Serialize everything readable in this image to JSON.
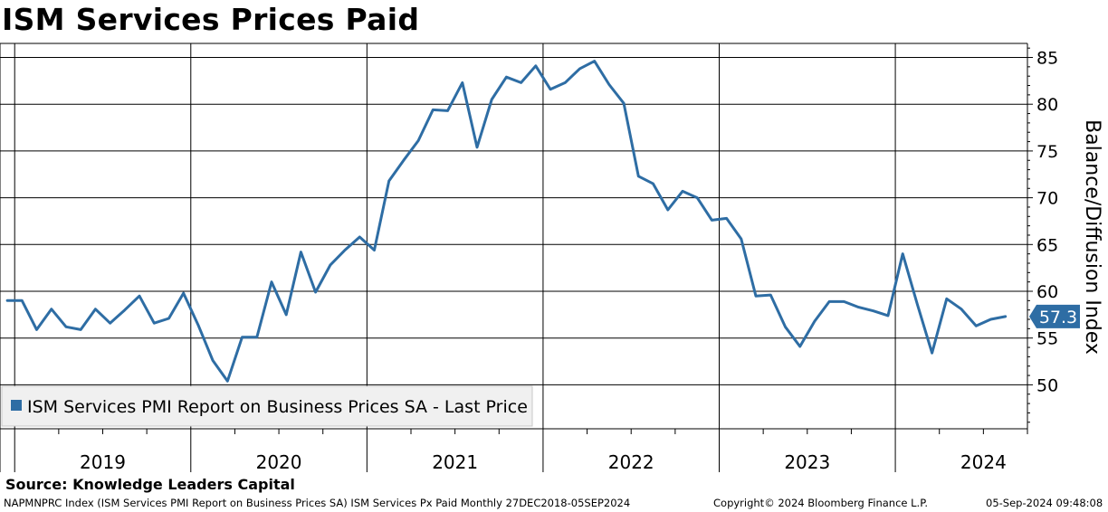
{
  "header": {
    "title": "ISM Services Prices Paid"
  },
  "source": "Source: Knowledge Leaders Capital",
  "footer": {
    "left": "NAPMNPRC Index (ISM Services PMI Report on Business Prices SA) ISM Services Px Paid  Monthly 27DEC2018-05SEP2024",
    "middle": "Copyright© 2024 Bloomberg Finance L.P.",
    "right": "05-Sep-2024 09:48:08"
  },
  "colors": {
    "line": "#2e6da4",
    "label_bg": "#2e6da4",
    "legend_bg": "#f0f0f0",
    "grid": "#000000"
  },
  "chart_data": {
    "type": "line",
    "title": "ISM Services Prices Paid",
    "ylabel": "Balance/Diffusion Index",
    "xlabel": "",
    "ylim": [
      45.3,
      86.5
    ],
    "y_ticks": [
      50,
      55,
      60,
      65,
      70,
      75,
      80,
      85
    ],
    "x_range": [
      "2018-12",
      "2024-10"
    ],
    "year_labels": [
      "2019",
      "2020",
      "2021",
      "2022",
      "2023",
      "2024"
    ],
    "grid": true,
    "legend_position": "bottom-left",
    "last_value_label": "57.3",
    "series": [
      {
        "name": "ISM Services PMI Report on Business Prices SA - Last Price",
        "x": [
          "2018-12",
          "2019-01",
          "2019-02",
          "2019-03",
          "2019-04",
          "2019-05",
          "2019-06",
          "2019-07",
          "2019-08",
          "2019-09",
          "2019-10",
          "2019-11",
          "2019-12",
          "2020-01",
          "2020-02",
          "2020-03",
          "2020-04",
          "2020-05",
          "2020-06",
          "2020-07",
          "2020-08",
          "2020-09",
          "2020-10",
          "2020-11",
          "2020-12",
          "2021-01",
          "2021-02",
          "2021-03",
          "2021-04",
          "2021-05",
          "2021-06",
          "2021-07",
          "2021-08",
          "2021-09",
          "2021-10",
          "2021-11",
          "2021-12",
          "2022-01",
          "2022-02",
          "2022-03",
          "2022-04",
          "2022-05",
          "2022-06",
          "2022-07",
          "2022-08",
          "2022-09",
          "2022-10",
          "2022-11",
          "2022-12",
          "2023-01",
          "2023-02",
          "2023-03",
          "2023-04",
          "2023-05",
          "2023-06",
          "2023-07",
          "2023-08",
          "2023-09",
          "2023-10",
          "2023-11",
          "2023-12",
          "2024-01",
          "2024-02",
          "2024-03",
          "2024-04",
          "2024-05",
          "2024-06",
          "2024-07",
          "2024-08"
        ],
        "values": [
          59.0,
          59.0,
          55.9,
          58.1,
          56.2,
          55.9,
          58.1,
          56.6,
          58.0,
          59.5,
          56.6,
          57.1,
          59.8,
          56.4,
          52.6,
          50.4,
          55.1,
          55.1,
          61.0,
          57.5,
          64.2,
          59.9,
          62.8,
          64.4,
          65.8,
          64.4,
          71.8,
          74.0,
          76.1,
          79.4,
          79.3,
          82.3,
          75.4,
          80.5,
          82.9,
          82.3,
          84.1,
          81.6,
          82.3,
          83.8,
          84.6,
          82.1,
          80.1,
          72.3,
          71.5,
          68.7,
          70.7,
          70.0,
          67.6,
          67.8,
          65.6,
          59.5,
          59.6,
          56.2,
          54.1,
          56.8,
          58.9,
          58.9,
          58.3,
          57.9,
          57.4,
          64.0,
          58.6,
          53.4,
          59.2,
          58.1,
          56.3,
          57.0,
          57.3
        ]
      }
    ]
  }
}
